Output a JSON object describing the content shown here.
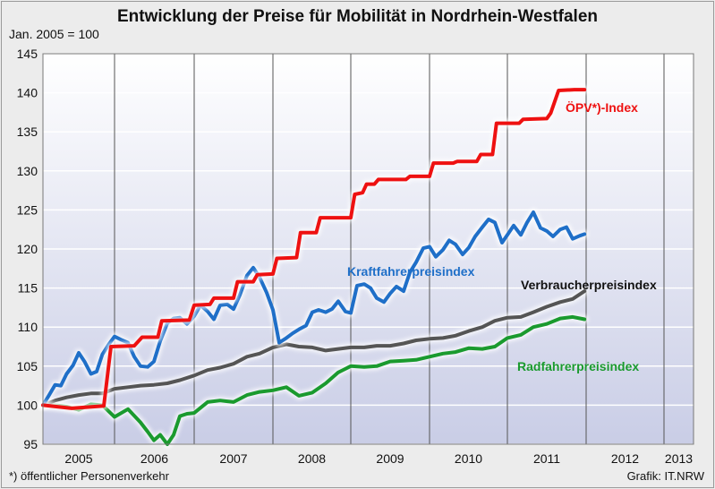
{
  "title": "Entwicklung der Preise für Mobilität in Nordrhein-Westfalen",
  "subtitle": "Jan. 2005 = 100",
  "footnote": "*) öffentlicher  Personenverkehr",
  "credit": "Grafik: IT.NRW",
  "chart_data": {
    "type": "line",
    "title": "Entwicklung der Preise für Mobilität in Nordrhein-Westfalen",
    "ylabel": "Jan. 2005 = 100",
    "xlabel": "",
    "ylim": [
      95,
      145
    ],
    "yticks": [
      95,
      100,
      105,
      110,
      115,
      120,
      125,
      130,
      135,
      140,
      145
    ],
    "categories": [
      "2005",
      "2006",
      "2007",
      "2008",
      "2009",
      "2010",
      "2011",
      "2012",
      "2013"
    ],
    "grid": true,
    "series": [
      {
        "name": "ÖPV*)-Index",
        "color": "#ee1111",
        "points": [
          [
            2005.0,
            100
          ],
          [
            2005.4,
            99.6
          ],
          [
            2005.85,
            99.9
          ],
          [
            2005.95,
            107.5
          ],
          [
            2006.25,
            107.6
          ],
          [
            2006.35,
            108.7
          ],
          [
            2006.55,
            108.7
          ],
          [
            2006.6,
            110.8
          ],
          [
            2006.95,
            110.9
          ],
          [
            2007.0,
            112.8
          ],
          [
            2007.2,
            112.9
          ],
          [
            2007.25,
            113.7
          ],
          [
            2007.5,
            113.7
          ],
          [
            2007.55,
            115.8
          ],
          [
            2007.75,
            115.8
          ],
          [
            2007.8,
            116.7
          ],
          [
            2008.0,
            116.8
          ],
          [
            2008.05,
            118.8
          ],
          [
            2008.3,
            118.9
          ],
          [
            2008.35,
            122.1
          ],
          [
            2008.55,
            122.1
          ],
          [
            2008.6,
            124.0
          ],
          [
            2009.0,
            124.0
          ],
          [
            2009.05,
            127.0
          ],
          [
            2009.15,
            127.2
          ],
          [
            2009.2,
            128.3
          ],
          [
            2009.3,
            128.3
          ],
          [
            2009.35,
            128.9
          ],
          [
            2009.7,
            128.9
          ],
          [
            2009.75,
            129.3
          ],
          [
            2010.0,
            129.3
          ],
          [
            2010.05,
            131.0
          ],
          [
            2010.3,
            131.0
          ],
          [
            2010.35,
            131.2
          ],
          [
            2010.6,
            131.2
          ],
          [
            2010.65,
            132.1
          ],
          [
            2010.8,
            132.1
          ],
          [
            2010.85,
            136.1
          ],
          [
            2011.15,
            136.1
          ],
          [
            2011.2,
            136.6
          ],
          [
            2011.5,
            136.7
          ],
          [
            2011.55,
            137.4
          ],
          [
            2011.65,
            140.3
          ],
          [
            2011.85,
            140.4
          ],
          [
            2011.98,
            140.4
          ]
        ]
      },
      {
        "name": "Kraftfahrerpreisindex",
        "color": "#1f6fc8",
        "points": [
          [
            2005.0,
            100
          ],
          [
            2005.08,
            101.2
          ],
          [
            2005.17,
            102.6
          ],
          [
            2005.25,
            102.5
          ],
          [
            2005.33,
            104.0
          ],
          [
            2005.42,
            105.1
          ],
          [
            2005.5,
            106.7
          ],
          [
            2005.58,
            105.6
          ],
          [
            2005.67,
            104.0
          ],
          [
            2005.75,
            104.3
          ],
          [
            2005.83,
            106.5
          ],
          [
            2005.92,
            107.8
          ],
          [
            2006.0,
            108.8
          ],
          [
            2006.08,
            108.4
          ],
          [
            2006.17,
            108.0
          ],
          [
            2006.25,
            106.2
          ],
          [
            2006.33,
            105.0
          ],
          [
            2006.42,
            104.9
          ],
          [
            2006.5,
            105.6
          ],
          [
            2006.58,
            108.2
          ],
          [
            2006.67,
            110.5
          ],
          [
            2006.75,
            111.1
          ],
          [
            2006.83,
            111.2
          ],
          [
            2006.92,
            110.4
          ],
          [
            2007.0,
            111.4
          ],
          [
            2007.08,
            112.8
          ],
          [
            2007.17,
            112.0
          ],
          [
            2007.25,
            111.0
          ],
          [
            2007.33,
            112.8
          ],
          [
            2007.42,
            112.9
          ],
          [
            2007.5,
            112.3
          ],
          [
            2007.58,
            114.1
          ],
          [
            2007.67,
            116.6
          ],
          [
            2007.75,
            117.6
          ],
          [
            2007.83,
            116.4
          ],
          [
            2007.92,
            114.4
          ],
          [
            2008.0,
            112.2
          ],
          [
            2008.08,
            108.0
          ],
          [
            2008.17,
            108.6
          ],
          [
            2008.25,
            109.2
          ],
          [
            2008.33,
            109.7
          ],
          [
            2008.42,
            110.2
          ],
          [
            2008.5,
            111.9
          ],
          [
            2008.58,
            112.2
          ],
          [
            2008.67,
            111.9
          ],
          [
            2008.75,
            112.3
          ],
          [
            2008.83,
            113.3
          ],
          [
            2008.92,
            112.0
          ],
          [
            2009.0,
            111.8
          ],
          [
            2009.08,
            115.3
          ],
          [
            2009.17,
            115.5
          ],
          [
            2009.25,
            115.0
          ],
          [
            2009.33,
            113.7
          ],
          [
            2009.42,
            113.2
          ],
          [
            2009.5,
            114.3
          ],
          [
            2009.58,
            115.2
          ],
          [
            2009.67,
            114.6
          ],
          [
            2009.75,
            117.0
          ],
          [
            2009.83,
            118.3
          ],
          [
            2009.92,
            120.1
          ],
          [
            2010.0,
            120.3
          ],
          [
            2010.08,
            119.0
          ],
          [
            2010.17,
            119.9
          ],
          [
            2010.25,
            121.1
          ],
          [
            2010.33,
            120.6
          ],
          [
            2010.42,
            119.3
          ],
          [
            2010.5,
            120.2
          ],
          [
            2010.58,
            121.6
          ],
          [
            2010.67,
            122.8
          ],
          [
            2010.75,
            123.8
          ],
          [
            2010.83,
            123.4
          ],
          [
            2010.92,
            120.8
          ],
          [
            2011.0,
            121.8
          ],
          [
            2011.08,
            123.0
          ],
          [
            2011.17,
            121.8
          ],
          [
            2011.25,
            123.4
          ],
          [
            2011.33,
            124.7
          ],
          [
            2011.42,
            122.7
          ],
          [
            2011.5,
            122.3
          ],
          [
            2011.58,
            121.6
          ],
          [
            2011.67,
            122.5
          ],
          [
            2011.75,
            122.8
          ],
          [
            2011.83,
            121.3
          ],
          [
            2011.92,
            121.7
          ],
          [
            2011.98,
            121.9
          ]
        ]
      },
      {
        "name": "Verbraucherpreisindex",
        "color": "#555555",
        "points": [
          [
            2005.0,
            100
          ],
          [
            2005.17,
            100.6
          ],
          [
            2005.33,
            101.0
          ],
          [
            2005.5,
            101.3
          ],
          [
            2005.67,
            101.5
          ],
          [
            2005.83,
            101.5
          ],
          [
            2006.0,
            102.1
          ],
          [
            2006.17,
            102.3
          ],
          [
            2006.33,
            102.5
          ],
          [
            2006.5,
            102.6
          ],
          [
            2006.67,
            102.8
          ],
          [
            2006.83,
            103.2
          ],
          [
            2007.0,
            103.8
          ],
          [
            2007.17,
            104.5
          ],
          [
            2007.33,
            104.8
          ],
          [
            2007.5,
            105.3
          ],
          [
            2007.67,
            106.2
          ],
          [
            2007.83,
            106.6
          ],
          [
            2008.0,
            107.4
          ],
          [
            2008.17,
            107.8
          ],
          [
            2008.33,
            107.5
          ],
          [
            2008.5,
            107.4
          ],
          [
            2008.67,
            107.0
          ],
          [
            2008.83,
            107.2
          ],
          [
            2009.0,
            107.4
          ],
          [
            2009.17,
            107.4
          ],
          [
            2009.33,
            107.6
          ],
          [
            2009.5,
            107.6
          ],
          [
            2009.67,
            107.9
          ],
          [
            2009.83,
            108.3
          ],
          [
            2010.0,
            108.5
          ],
          [
            2010.17,
            108.6
          ],
          [
            2010.33,
            108.9
          ],
          [
            2010.5,
            109.5
          ],
          [
            2010.67,
            110.0
          ],
          [
            2010.83,
            110.8
          ],
          [
            2011.0,
            111.2
          ],
          [
            2011.17,
            111.3
          ],
          [
            2011.33,
            111.9
          ],
          [
            2011.5,
            112.6
          ],
          [
            2011.67,
            113.2
          ],
          [
            2011.83,
            113.6
          ],
          [
            2011.98,
            114.6
          ]
        ]
      },
      {
        "name": "Radfahrerpreisindex",
        "color": "#1a9a2e",
        "points": [
          [
            2005.0,
            100
          ],
          [
            2005.17,
            100.0
          ],
          [
            2005.33,
            99.8
          ],
          [
            2005.5,
            99.4
          ],
          [
            2005.67,
            100.1
          ],
          [
            2005.83,
            100.0
          ],
          [
            2006.0,
            98.5
          ],
          [
            2006.17,
            99.5
          ],
          [
            2006.33,
            97.8
          ],
          [
            2006.42,
            96.6
          ],
          [
            2006.5,
            95.5
          ],
          [
            2006.58,
            96.2
          ],
          [
            2006.67,
            95.0
          ],
          [
            2006.75,
            96.2
          ],
          [
            2006.83,
            98.6
          ],
          [
            2006.92,
            98.9
          ],
          [
            2007.0,
            99.0
          ],
          [
            2007.17,
            100.4
          ],
          [
            2007.33,
            100.6
          ],
          [
            2007.5,
            100.4
          ],
          [
            2007.67,
            101.3
          ],
          [
            2007.83,
            101.7
          ],
          [
            2008.0,
            101.9
          ],
          [
            2008.17,
            102.3
          ],
          [
            2008.33,
            101.2
          ],
          [
            2008.5,
            101.6
          ],
          [
            2008.67,
            102.8
          ],
          [
            2008.83,
            104.2
          ],
          [
            2009.0,
            105.0
          ],
          [
            2009.17,
            104.9
          ],
          [
            2009.33,
            105.0
          ],
          [
            2009.5,
            105.6
          ],
          [
            2009.67,
            105.7
          ],
          [
            2009.83,
            105.8
          ],
          [
            2010.0,
            106.2
          ],
          [
            2010.17,
            106.6
          ],
          [
            2010.33,
            106.8
          ],
          [
            2010.5,
            107.3
          ],
          [
            2010.67,
            107.2
          ],
          [
            2010.83,
            107.5
          ],
          [
            2011.0,
            108.6
          ],
          [
            2011.17,
            109.0
          ],
          [
            2011.33,
            110.0
          ],
          [
            2011.5,
            110.4
          ],
          [
            2011.67,
            111.1
          ],
          [
            2011.83,
            111.3
          ],
          [
            2011.98,
            111.0
          ]
        ]
      }
    ],
    "annotations": [
      {
        "text": "ÖPV*)-Index",
        "color": "#ee1111"
      },
      {
        "text": "Kraftfahrerpreisindex",
        "color": "#1f6fc8"
      },
      {
        "text": "Verbraucherpreisindex",
        "color": "#111111"
      },
      {
        "text": "Radfahrerpreisindex",
        "color": "#1a9a2e"
      }
    ]
  }
}
